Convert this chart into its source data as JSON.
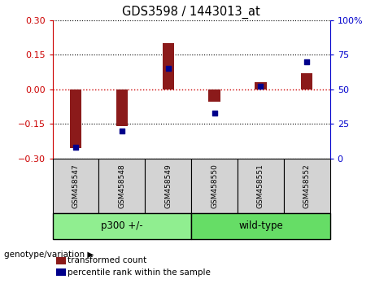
{
  "title": "GDS3598 / 1443013_at",
  "samples": [
    "GSM458547",
    "GSM458548",
    "GSM458549",
    "GSM458550",
    "GSM458551",
    "GSM458552"
  ],
  "transformed_counts": [
    -0.255,
    -0.16,
    0.2,
    -0.055,
    0.03,
    0.07
  ],
  "percentile_ranks": [
    8,
    20,
    65,
    33,
    52,
    70
  ],
  "groups": [
    {
      "label": "p300 +/-",
      "indices": [
        0,
        1,
        2
      ],
      "color": "#90EE90"
    },
    {
      "label": "wild-type",
      "indices": [
        3,
        4,
        5
      ],
      "color": "#66DD66"
    }
  ],
  "ylim_left": [
    -0.3,
    0.3
  ],
  "ylim_right": [
    0,
    100
  ],
  "yticks_left": [
    -0.3,
    -0.15,
    0,
    0.15,
    0.3
  ],
  "yticks_right": [
    0,
    25,
    50,
    75,
    100
  ],
  "bar_color": "#8B1A1A",
  "scatter_color": "#00008B",
  "hline_color": "#CC0000",
  "grid_color": "#000000",
  "legend_red_label": "transformed count",
  "legend_blue_label": "percentile rank within the sample",
  "group_label": "genotype/variation"
}
